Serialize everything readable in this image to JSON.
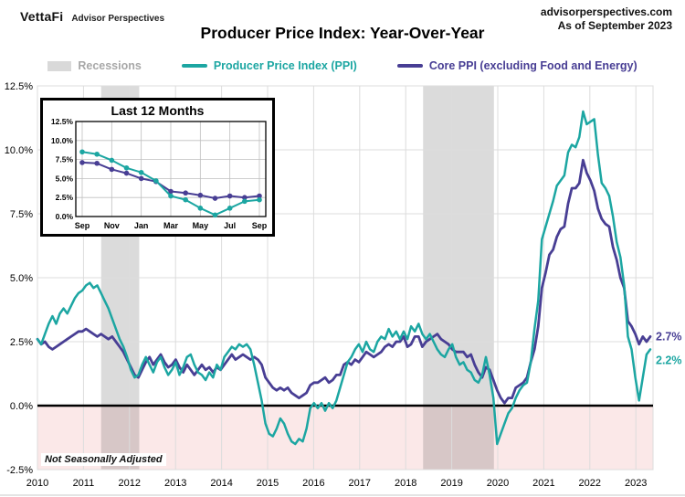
{
  "header": {
    "logo": "VettaFi",
    "logo_sub": "Advisor Perspectives",
    "site": "advisorperspectives.com",
    "as_of": "As of September 2023"
  },
  "title": "Producer Price Index: Year-Over-Year",
  "legend": {
    "recessions": "Recessions",
    "ppi": "Producer Price Index (PPI)",
    "core": "Core PPI (excluding Food and Energy)"
  },
  "colors": {
    "ppi": "#1CA6A2",
    "core": "#483E94",
    "recession_text": "#A8A8A8",
    "recession_fill": "rgba(0,0,0,0.14)",
    "negative_zone": "#FBE8E8",
    "grid": "#DCDCDC",
    "inset_grid": "#BFBFBF",
    "zero_line": "#000000"
  },
  "chart_data": {
    "type": "line",
    "title": "Producer Price Index: Year-Over-Year",
    "frequency": "monthly",
    "x_start": "2010-01",
    "x_end": "2023-09",
    "ylim": [
      -2.5,
      12.5
    ],
    "y_ticks": {
      "values": [
        12.5,
        10.0,
        7.5,
        5.0,
        2.5,
        0.0,
        -2.5
      ],
      "labels": [
        "12.5%",
        "10.0%",
        "7.5%",
        "5.0%",
        "2.5%",
        "0.0%",
        "-2.5%"
      ]
    },
    "x_year_labels": [
      "2010",
      "2011",
      "2012",
      "2013",
      "2014",
      "2015",
      "2016",
      "2017",
      "2018",
      "2019",
      "2020",
      "2021",
      "2022",
      "2023"
    ],
    "grid": true,
    "legend_position": "top",
    "footnote": "Not Seasonally Adjusted",
    "recessions": [
      {
        "from_year": 2011.42,
        "to_year": 2012.27
      },
      {
        "from_year": 2018.6,
        "to_year": 2020.18
      }
    ],
    "series": [
      {
        "name": "Producer Price Index (PPI)",
        "color_key": "ppi",
        "end_label": "2.2%",
        "values": [
          2.6,
          2.4,
          2.8,
          3.2,
          3.5,
          3.2,
          3.6,
          3.8,
          3.6,
          3.9,
          4.2,
          4.4,
          4.5,
          4.7,
          4.8,
          4.6,
          4.7,
          4.4,
          4.1,
          3.8,
          3.4,
          3.0,
          2.6,
          2.3,
          1.9,
          1.4,
          1.1,
          1.2,
          1.6,
          1.9,
          1.6,
          1.3,
          1.7,
          1.9,
          1.5,
          1.2,
          1.4,
          1.7,
          1.2,
          1.5,
          1.9,
          2.0,
          1.6,
          1.3,
          1.2,
          1.0,
          1.3,
          1.1,
          1.6,
          1.4,
          1.9,
          2.1,
          2.3,
          2.2,
          2.4,
          2.3,
          2.4,
          2.2,
          1.6,
          0.9,
          0.2,
          -0.7,
          -1.1,
          -1.2,
          -0.9,
          -0.5,
          -0.7,
          -1.1,
          -1.4,
          -1.5,
          -1.3,
          -1.4,
          -0.9,
          -0.1,
          0.1,
          -0.1,
          0.1,
          -0.2,
          0.1,
          -0.1,
          0.2,
          0.7,
          1.2,
          1.7,
          1.9,
          2.2,
          2.4,
          2.1,
          2.5,
          2.2,
          2.1,
          2.5,
          2.7,
          2.6,
          3.0,
          2.7,
          2.9,
          2.6,
          2.9,
          2.6,
          3.1,
          2.9,
          3.2,
          2.8,
          2.6,
          2.8,
          2.5,
          2.2,
          2.0,
          1.9,
          2.2,
          2.4,
          1.9,
          1.6,
          1.7,
          1.4,
          1.3,
          1.0,
          0.9,
          1.2,
          1.9,
          1.2,
          0.3,
          -1.5,
          -1.1,
          -0.7,
          -0.3,
          -0.1,
          0.3,
          0.6,
          0.8,
          0.9,
          1.7,
          3.0,
          4.1,
          6.5,
          7.0,
          7.5,
          8.0,
          8.6,
          8.8,
          9.0,
          9.9,
          10.2,
          10.1,
          10.5,
          11.5,
          11.0,
          11.1,
          11.2,
          9.8,
          8.7,
          8.5,
          8.2,
          7.4,
          6.4,
          5.8,
          4.7,
          2.7,
          2.2,
          1.1,
          0.2,
          1.1,
          2.0,
          2.2
        ]
      },
      {
        "name": "Core PPI (excluding Food and Energy)",
        "color_key": "core",
        "end_label": "2.7%",
        "values": [
          2.6,
          2.4,
          2.5,
          2.3,
          2.2,
          2.3,
          2.4,
          2.5,
          2.6,
          2.7,
          2.8,
          2.9,
          2.9,
          3.0,
          2.9,
          2.8,
          2.7,
          2.8,
          2.7,
          2.6,
          2.7,
          2.5,
          2.3,
          2.1,
          1.8,
          1.5,
          1.2,
          1.1,
          1.4,
          1.7,
          1.9,
          1.6,
          1.8,
          2.0,
          1.7,
          1.5,
          1.6,
          1.8,
          1.5,
          1.3,
          1.6,
          1.4,
          1.2,
          1.4,
          1.6,
          1.4,
          1.5,
          1.3,
          1.5,
          1.4,
          1.6,
          1.8,
          2.0,
          1.8,
          1.9,
          2.0,
          1.9,
          1.8,
          1.9,
          1.8,
          1.6,
          1.1,
          0.9,
          0.7,
          0.6,
          0.7,
          0.6,
          0.7,
          0.5,
          0.4,
          0.3,
          0.4,
          0.5,
          0.8,
          0.9,
          0.9,
          1.0,
          1.1,
          0.9,
          1.0,
          1.2,
          1.2,
          1.6,
          1.7,
          1.6,
          1.8,
          1.7,
          1.9,
          2.1,
          2.0,
          1.9,
          2.0,
          2.1,
          2.3,
          2.4,
          2.3,
          2.5,
          2.5,
          2.7,
          2.3,
          2.4,
          2.7,
          2.7,
          2.3,
          2.5,
          2.6,
          2.7,
          2.8,
          2.6,
          2.5,
          2.4,
          2.2,
          2.1,
          2.1,
          2.1,
          1.9,
          2.0,
          1.6,
          1.3,
          1.1,
          1.5,
          1.4,
          1.0,
          0.6,
          0.3,
          0.1,
          0.3,
          0.3,
          0.7,
          0.8,
          0.9,
          1.1,
          1.7,
          2.2,
          3.1,
          4.6,
          5.2,
          5.9,
          6.1,
          6.6,
          6.9,
          7.0,
          7.9,
          8.5,
          8.5,
          8.7,
          9.6,
          9.1,
          8.8,
          8.4,
          7.7,
          7.3,
          7.1,
          7.0,
          6.2,
          5.7,
          5.0,
          4.6,
          3.3,
          3.1,
          2.8,
          2.4,
          2.7,
          2.5,
          2.7
        ]
      }
    ],
    "inset": {
      "title": "Last 12 Months",
      "x_tick_labels": [
        "Sep",
        "Nov",
        "Jan",
        "Mar",
        "May",
        "Jul",
        "Sep"
      ],
      "y_tick_values": [
        0.0,
        2.5,
        5.0,
        7.5,
        10.0,
        12.5
      ],
      "y_tick_labels": [
        "0.0%",
        "2.5%",
        "5.0%",
        "7.5%",
        "10.0%",
        "12.5%"
      ],
      "n_points": 13,
      "ppi": [
        8.5,
        8.2,
        7.4,
        6.4,
        5.8,
        4.7,
        2.7,
        2.2,
        1.1,
        0.2,
        1.1,
        2.0,
        2.2
      ],
      "core": [
        7.1,
        7.0,
        6.2,
        5.7,
        5.0,
        4.6,
        3.3,
        3.1,
        2.8,
        2.4,
        2.7,
        2.5,
        2.7
      ]
    }
  }
}
